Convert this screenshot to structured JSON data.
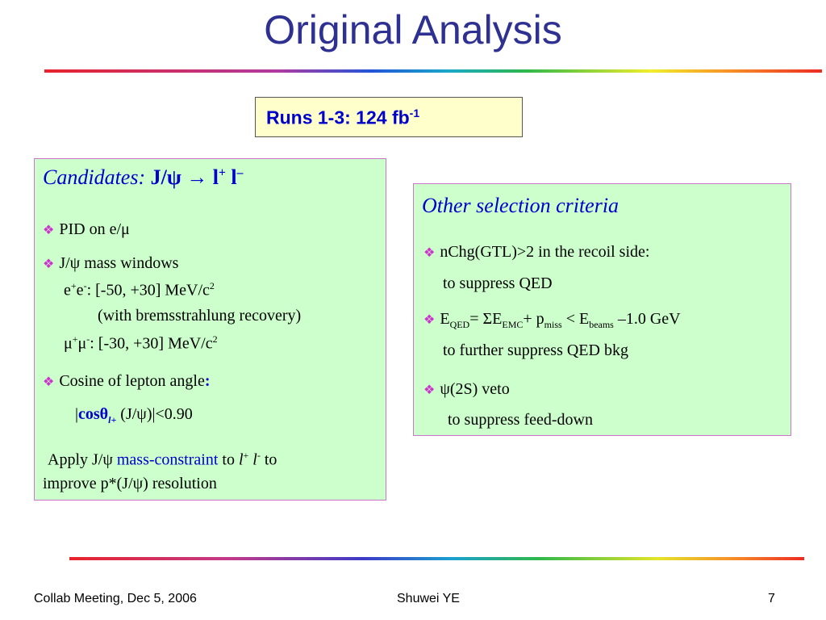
{
  "slide": {
    "title": "Original Analysis",
    "runs_box": {
      "text": "Runs 1-3: 124 fb",
      "superscript": "-1"
    }
  },
  "left_box": {
    "heading": "Candidates:",
    "heading_formula": "J/ψ → l",
    "heading_sup1": "+",
    "heading_l2": " l",
    "heading_sup2": "–",
    "bullet_icon": "diamond-bullet-icon",
    "items": {
      "pid": "PID on e/μ",
      "mass_windows": "J/ψ mass windows",
      "ee_pre": "e",
      "ee_sup1": "+",
      "ee_mid": "e",
      "ee_sup2": "-",
      "ee_range": ":  [-50, +30] MeV/c",
      "ee_sup3": "2",
      "brem": "(with bremsstrahlung recovery)",
      "mm_pre": "μ",
      "mm_sup1": "+",
      "mm_mid": "μ",
      "mm_sup2": "-",
      "mm_range": ": [-30, +30] MeV/c",
      "mm_sup3": "2",
      "cosine": "Cosine of lepton angle",
      "cosine_colon": ":",
      "cos_bar": "|",
      "cos_text": "cosθ",
      "cos_sub": "l+",
      "cos_rest": " (J/ψ)|<0.90"
    },
    "apply_1": "Apply J/ψ ",
    "apply_link": "mass-constraint",
    "apply_2": "  to ",
    "apply_l1": "l",
    "apply_sup1": "+",
    "apply_l2": " l",
    "apply_sup2": "-",
    "apply_3": " to",
    "apply_line2": "improve p*(J/ψ) resolution"
  },
  "right_box": {
    "heading": "Other selection criteria",
    "nchg": "nChg(GTL)>2 in the recoil side:",
    "nchg_sub": "to suppress QED",
    "e_pre": "E",
    "e_sub1": "QED",
    "e_mid1": "= ΣE",
    "e_sub2": "EMC",
    "e_mid2": "+ p",
    "e_sub3": "miss",
    "e_mid3": " < E",
    "e_sub4": "beams",
    "e_post": " –1.0 GeV",
    "e_sub_line": "to further suppress QED bkg",
    "psi": "ψ(2S) veto",
    "psi_sub": "to suppress feed-down"
  },
  "footer": {
    "meeting": "Collab Meeting,  Dec 5, 2006",
    "author": "Shuwei YE",
    "page": "7"
  },
  "colors": {
    "title": "#2e3192",
    "box_fill": "#ccffcc",
    "box_border": "#cc77cc",
    "runs_fill": "#ffffcc",
    "blue_text": "#0000cc",
    "bullet": "#cc33cc"
  }
}
